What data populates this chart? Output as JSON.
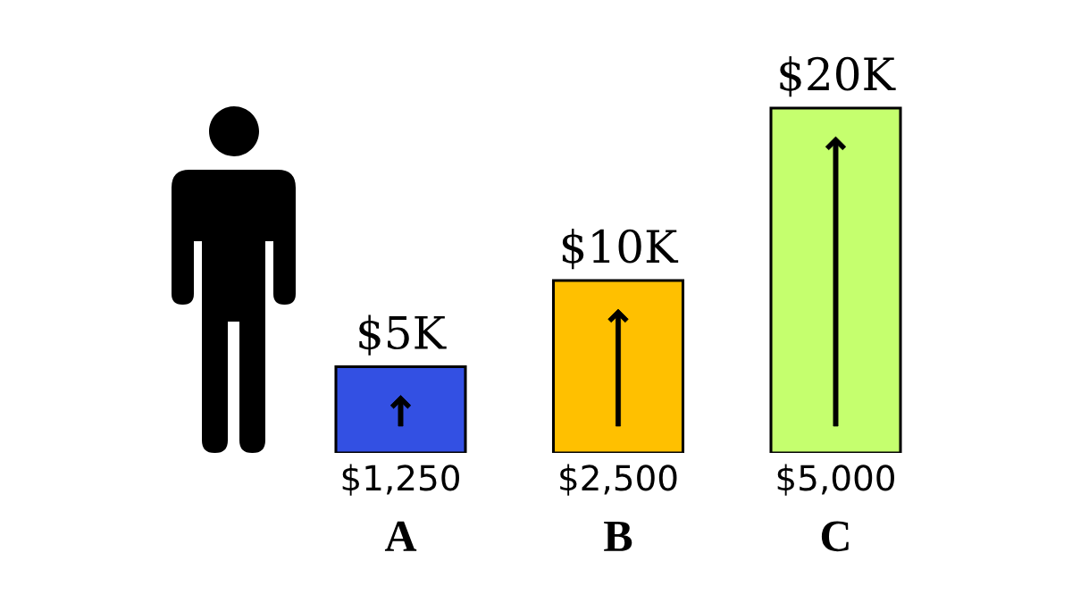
{
  "chart_data": {
    "type": "bar",
    "categories": [
      "A",
      "B",
      "C"
    ],
    "values": [
      5000,
      10000,
      20000
    ],
    "colors": [
      "#3350e3",
      "#ffc000",
      "#c5ff6e"
    ],
    "value_labels": [
      "$5K",
      "$10K",
      "$20K"
    ],
    "annotations": [
      {
        "text": "$1,250",
        "x": "A",
        "y": 0
      },
      {
        "text": "$2,500",
        "x": "B",
        "y": 0
      },
      {
        "text": "$5,000",
        "x": "C",
        "y": 0
      }
    ]
  }
}
